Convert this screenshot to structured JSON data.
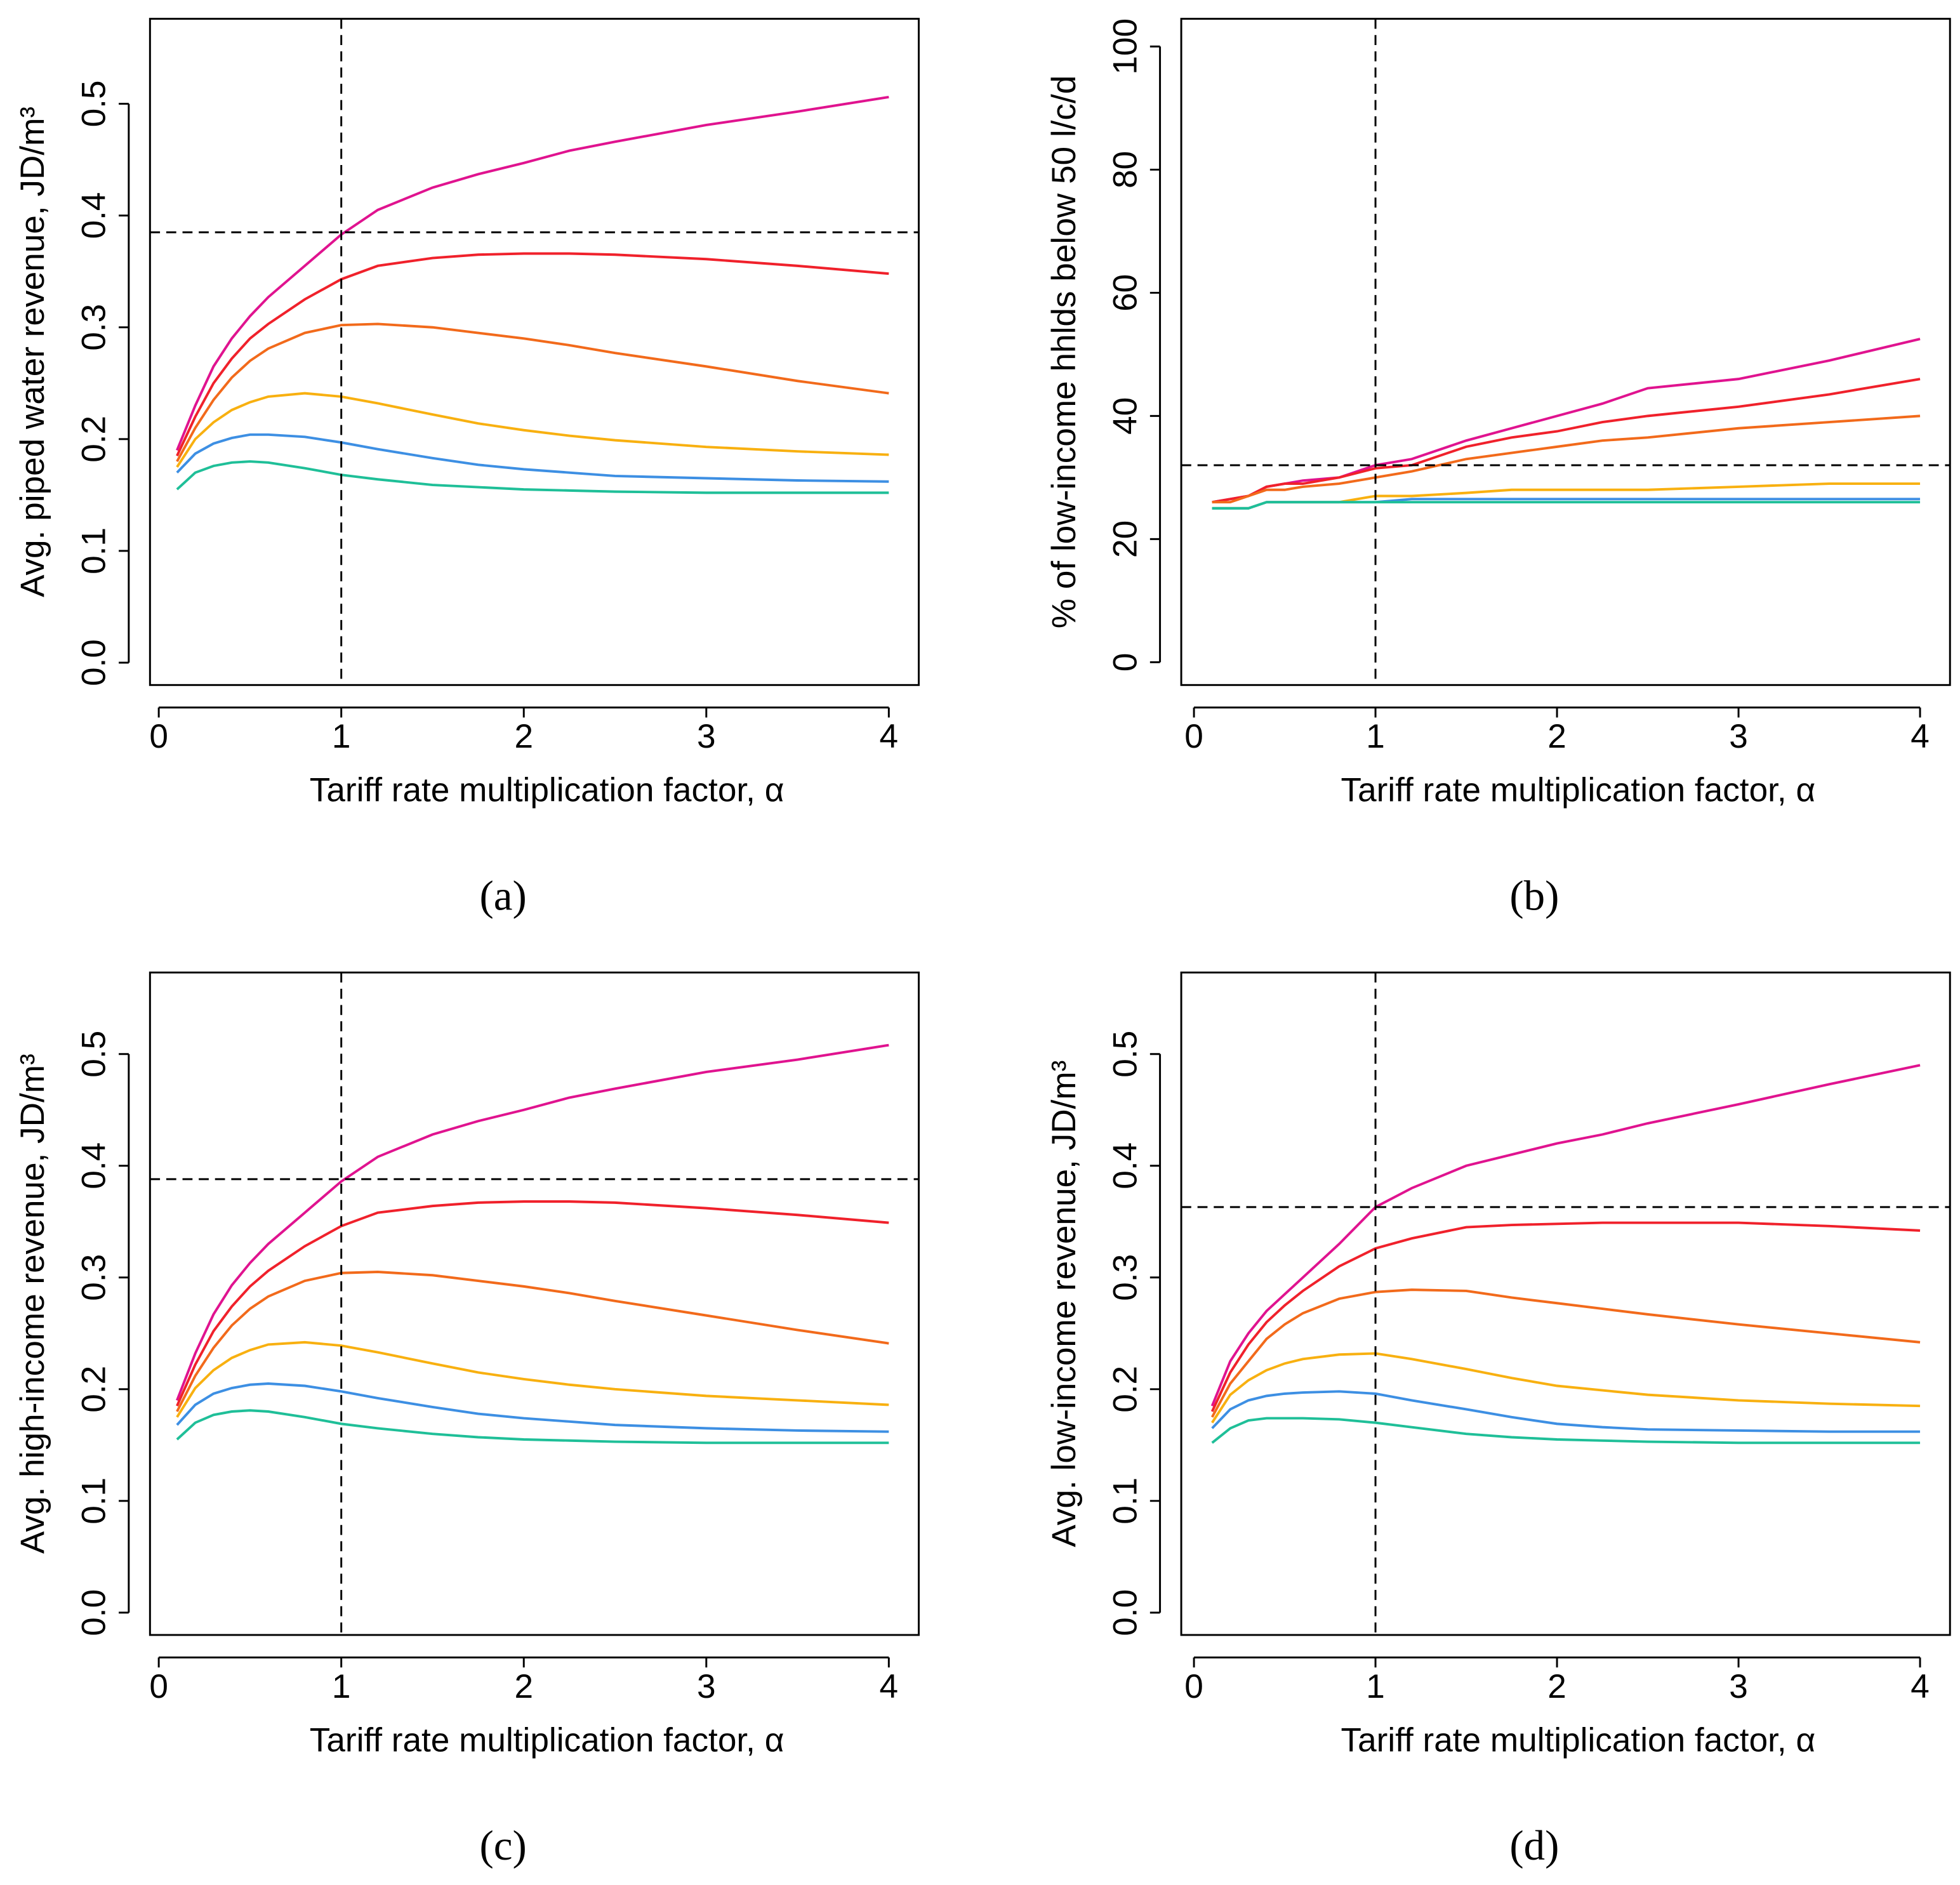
{
  "chart_data": [
    {
      "type": "line",
      "caption": "(a)",
      "x_label": "Tariff rate multiplication factor, α",
      "y_label": "Avg. piped water revenue, JD/m³",
      "xlim": [
        -0.048,
        4.164
      ],
      "ylim": [
        -0.02,
        0.576
      ],
      "xticks": [
        0,
        1,
        2,
        3,
        4
      ],
      "yticks": [
        {
          "value": 0,
          "label": "0.0"
        },
        0.1,
        0.2,
        0.3,
        0.4,
        0.5
      ],
      "hline": 0.385,
      "vline": 1,
      "x": [
        0.1,
        0.2,
        0.3,
        0.4,
        0.5,
        0.6,
        0.8,
        1,
        1.2,
        1.5,
        1.75,
        2,
        2.25,
        2.5,
        3,
        3.5,
        4
      ],
      "series": [
        {
          "color": "#e0138f",
          "values": [
            0.19,
            0.23,
            0.265,
            0.29,
            0.31,
            0.327,
            0.355,
            0.383,
            0.405,
            0.425,
            0.437,
            0.447,
            0.458,
            0.466,
            0.481,
            0.493,
            0.506
          ]
        },
        {
          "color": "#f0212b",
          "values": [
            0.185,
            0.22,
            0.25,
            0.272,
            0.29,
            0.303,
            0.325,
            0.343,
            0.355,
            0.362,
            0.365,
            0.366,
            0.366,
            0.365,
            0.361,
            0.355,
            0.348
          ]
        },
        {
          "color": "#f26a1b",
          "values": [
            0.18,
            0.21,
            0.235,
            0.255,
            0.27,
            0.281,
            0.295,
            0.302,
            0.303,
            0.3,
            0.295,
            0.29,
            0.284,
            0.277,
            0.265,
            0.252,
            0.241
          ]
        },
        {
          "color": "#f8b010",
          "values": [
            0.175,
            0.2,
            0.215,
            0.226,
            0.233,
            0.238,
            0.241,
            0.238,
            0.232,
            0.222,
            0.214,
            0.208,
            0.203,
            0.199,
            0.193,
            0.189,
            0.186
          ]
        },
        {
          "color": "#3d8fe3",
          "values": [
            0.17,
            0.187,
            0.196,
            0.201,
            0.204,
            0.204,
            0.202,
            0.197,
            0.191,
            0.183,
            0.177,
            0.173,
            0.17,
            0.167,
            0.165,
            0.163,
            0.162
          ]
        },
        {
          "color": "#1fbf98",
          "values": [
            0.155,
            0.17,
            0.176,
            0.179,
            0.18,
            0.179,
            0.174,
            0.168,
            0.164,
            0.159,
            0.157,
            0.155,
            0.154,
            0.153,
            0.152,
            0.152,
            0.152
          ]
        }
      ]
    },
    {
      "type": "line",
      "caption": "(b)",
      "x_label": "Tariff rate multiplication factor, α",
      "y_label": "% of low-income hhlds below 50 l/c/d",
      "xlim": [
        -0.07,
        4.165
      ],
      "ylim": [
        -3.7,
        104.5
      ],
      "xticks": [
        0,
        1,
        2,
        3,
        4
      ],
      "yticks": [
        0,
        20,
        40,
        60,
        80,
        100
      ],
      "hline": 32,
      "vline": 1,
      "x": [
        0.1,
        0.2,
        0.3,
        0.4,
        0.5,
        0.6,
        0.8,
        1,
        1.2,
        1.5,
        1.75,
        2,
        2.25,
        2.5,
        3,
        3.5,
        4
      ],
      "series": [
        {
          "color": "#e0138f",
          "values": [
            26,
            26.5,
            27,
            28.5,
            29,
            29.5,
            30,
            32,
            33,
            36,
            38,
            40,
            42,
            44.5,
            46,
            49,
            52.5
          ]
        },
        {
          "color": "#f0212b",
          "values": [
            26,
            26.5,
            27,
            28.5,
            29,
            29,
            30,
            31.5,
            32,
            35,
            36.5,
            37.5,
            39,
            40,
            41.5,
            43.5,
            46
          ]
        },
        {
          "color": "#f26a1b",
          "values": [
            26,
            26,
            27,
            28,
            28,
            28.5,
            29,
            30,
            31,
            33,
            34,
            35,
            36,
            36.5,
            38,
            39,
            40
          ]
        },
        {
          "color": "#f8b010",
          "values": [
            25,
            25,
            25,
            26,
            26,
            26,
            26,
            27,
            27,
            27.5,
            28,
            28,
            28,
            28,
            28.5,
            29,
            29
          ]
        },
        {
          "color": "#3d8fe3",
          "values": [
            25,
            25,
            25,
            26,
            26,
            26,
            26,
            26,
            26.5,
            26.5,
            26.5,
            26.5,
            26.5,
            26.5,
            26.5,
            26.5,
            26.5
          ]
        },
        {
          "color": "#1fbf98",
          "values": [
            25,
            25,
            25,
            26,
            26,
            26,
            26,
            26,
            26,
            26,
            26,
            26,
            26,
            26,
            26,
            26,
            26
          ]
        }
      ]
    },
    {
      "type": "line",
      "caption": "(c)",
      "x_label": "Tariff rate multiplication factor, α",
      "y_label": "Avg. high-income revenue, JD/m³",
      "xlim": [
        -0.048,
        4.164
      ],
      "ylim": [
        -0.02,
        0.573
      ],
      "xticks": [
        0,
        1,
        2,
        3,
        4
      ],
      "yticks": [
        {
          "value": 0,
          "label": "0.0"
        },
        0.1,
        0.2,
        0.3,
        0.4,
        0.5
      ],
      "hline": 0.388,
      "vline": 1,
      "x": [
        0.1,
        0.2,
        0.3,
        0.4,
        0.5,
        0.6,
        0.8,
        1,
        1.2,
        1.5,
        1.75,
        2,
        2.25,
        2.5,
        3,
        3.5,
        4
      ],
      "series": [
        {
          "color": "#e0138f",
          "values": [
            0.19,
            0.232,
            0.267,
            0.293,
            0.313,
            0.33,
            0.358,
            0.386,
            0.408,
            0.428,
            0.44,
            0.45,
            0.461,
            0.469,
            0.484,
            0.495,
            0.508
          ]
        },
        {
          "color": "#f0212b",
          "values": [
            0.185,
            0.222,
            0.252,
            0.274,
            0.292,
            0.306,
            0.328,
            0.346,
            0.358,
            0.364,
            0.367,
            0.368,
            0.368,
            0.367,
            0.362,
            0.356,
            0.349
          ]
        },
        {
          "color": "#f26a1b",
          "values": [
            0.18,
            0.212,
            0.237,
            0.257,
            0.272,
            0.283,
            0.297,
            0.304,
            0.305,
            0.302,
            0.297,
            0.292,
            0.286,
            0.279,
            0.266,
            0.253,
            0.241
          ]
        },
        {
          "color": "#f8b010",
          "values": [
            0.175,
            0.201,
            0.217,
            0.228,
            0.235,
            0.24,
            0.242,
            0.239,
            0.233,
            0.223,
            0.215,
            0.209,
            0.204,
            0.2,
            0.194,
            0.19,
            0.186
          ]
        },
        {
          "color": "#3d8fe3",
          "values": [
            0.168,
            0.186,
            0.196,
            0.201,
            0.204,
            0.205,
            0.203,
            0.198,
            0.192,
            0.184,
            0.178,
            0.174,
            0.171,
            0.168,
            0.165,
            0.163,
            0.162
          ]
        },
        {
          "color": "#1fbf98",
          "values": [
            0.155,
            0.17,
            0.177,
            0.18,
            0.181,
            0.18,
            0.175,
            0.169,
            0.165,
            0.16,
            0.157,
            0.155,
            0.154,
            0.153,
            0.152,
            0.152,
            0.152
          ]
        }
      ]
    },
    {
      "type": "line",
      "caption": "(d)",
      "x_label": "Tariff rate multiplication factor, α",
      "y_label": "Avg. low-income revenue, JD/m³",
      "xlim": [
        -0.07,
        4.165
      ],
      "ylim": [
        -0.02,
        0.573
      ],
      "xticks": [
        0,
        1,
        2,
        3,
        4
      ],
      "yticks": [
        {
          "value": 0,
          "label": "0.0"
        },
        0.1,
        0.2,
        0.3,
        0.4,
        0.5
      ],
      "hline": 0.363,
      "vline": 1,
      "x": [
        0.1,
        0.2,
        0.3,
        0.4,
        0.5,
        0.6,
        0.8,
        1,
        1.2,
        1.5,
        1.75,
        2,
        2.25,
        2.5,
        3,
        3.5,
        4
      ],
      "series": [
        {
          "color": "#e0138f",
          "values": [
            0.185,
            0.225,
            0.25,
            0.27,
            0.285,
            0.3,
            0.33,
            0.363,
            0.38,
            0.4,
            0.41,
            0.42,
            0.428,
            0.438,
            0.455,
            0.473,
            0.49
          ]
        },
        {
          "color": "#f0212b",
          "values": [
            0.18,
            0.215,
            0.24,
            0.26,
            0.275,
            0.288,
            0.31,
            0.326,
            0.335,
            0.345,
            0.347,
            0.348,
            0.349,
            0.349,
            0.349,
            0.346,
            0.342
          ]
        },
        {
          "color": "#f26a1b",
          "values": [
            0.175,
            0.205,
            0.225,
            0.245,
            0.258,
            0.268,
            0.281,
            0.287,
            0.289,
            0.288,
            0.282,
            0.277,
            0.272,
            0.267,
            0.258,
            0.25,
            0.242
          ]
        },
        {
          "color": "#f8b010",
          "values": [
            0.17,
            0.195,
            0.208,
            0.217,
            0.223,
            0.227,
            0.231,
            0.232,
            0.227,
            0.218,
            0.21,
            0.203,
            0.199,
            0.195,
            0.19,
            0.187,
            0.185
          ]
        },
        {
          "color": "#3d8fe3",
          "values": [
            0.165,
            0.182,
            0.19,
            0.194,
            0.196,
            0.197,
            0.198,
            0.196,
            0.19,
            0.182,
            0.175,
            0.169,
            0.166,
            0.164,
            0.163,
            0.162,
            0.162
          ]
        },
        {
          "color": "#1fbf98",
          "values": [
            0.152,
            0.165,
            0.172,
            0.174,
            0.174,
            0.174,
            0.173,
            0.17,
            0.166,
            0.16,
            0.157,
            0.155,
            0.154,
            0.153,
            0.152,
            0.152,
            0.152
          ]
        }
      ]
    }
  ]
}
